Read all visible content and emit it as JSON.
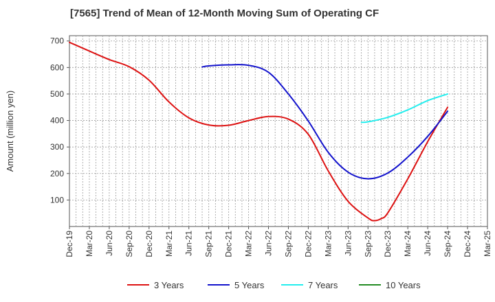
{
  "chart_data": {
    "type": "line",
    "title": "[7565]  Trend of Mean of 12-Month Moving Sum of Operating CF",
    "ylabel": "Amount (million yen)",
    "xlabel": "",
    "ylim": [
      0,
      720
    ],
    "yticks": [
      100,
      200,
      300,
      400,
      500,
      600,
      700
    ],
    "xlim": [
      0,
      21
    ],
    "x_tick_labels": [
      "Dec-19",
      "Mar-20",
      "Jun-20",
      "Sep-20",
      "Dec-20",
      "Mar-21",
      "Jun-21",
      "Sep-21",
      "Dec-21",
      "Mar-22",
      "Jun-22",
      "Sep-22",
      "Dec-22",
      "Mar-23",
      "Jun-23",
      "Sep-23",
      "Dec-23",
      "Mar-24",
      "Jun-24",
      "Sep-24",
      "Dec-24",
      "Mar-25"
    ],
    "grid": true,
    "legend_position": "bottom",
    "series": [
      {
        "name": "3 Years",
        "color": "#dd1111",
        "x": [
          0,
          1,
          2,
          3,
          4,
          5,
          6,
          7,
          8,
          9,
          10,
          11,
          12,
          13,
          14,
          15,
          15.33,
          15.67,
          16,
          17,
          18,
          19
        ],
        "values": [
          695,
          662,
          630,
          603,
          552,
          470,
          410,
          383,
          382,
          400,
          415,
          405,
          348,
          210,
          95,
          32,
          22,
          30,
          52,
          180,
          320,
          450
        ]
      },
      {
        "name": "5 Years",
        "color": "#1111cc",
        "x": [
          6.67,
          7,
          8,
          9,
          10,
          11,
          12,
          13,
          14,
          15,
          16,
          17,
          18,
          19
        ],
        "values": [
          602,
          606,
          610,
          608,
          582,
          500,
          398,
          280,
          205,
          180,
          202,
          262,
          340,
          435
        ]
      },
      {
        "name": "7 Years",
        "color": "#22eeee",
        "x": [
          14.67,
          15,
          16,
          17,
          18,
          19
        ],
        "values": [
          393,
          395,
          412,
          440,
          475,
          500
        ]
      },
      {
        "name": "10 Years",
        "color": "#228b22",
        "x": [],
        "values": []
      }
    ]
  }
}
